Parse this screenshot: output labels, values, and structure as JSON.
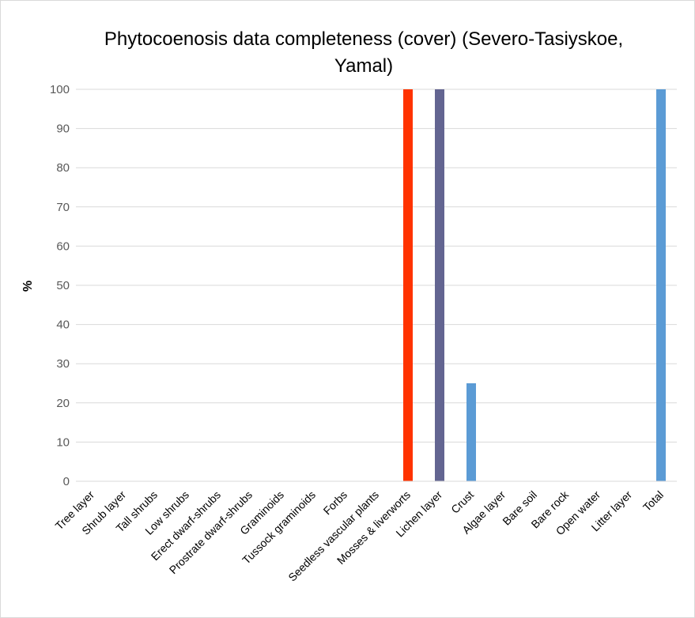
{
  "chart_data": {
    "type": "bar",
    "title": "Phytocoenosis data completeness (cover) (Severo-Tasiyskoe, Yamal)",
    "xlabel": "",
    "ylabel": "%",
    "ylim": [
      0,
      100
    ],
    "yticks": [
      0,
      10,
      20,
      30,
      40,
      50,
      60,
      70,
      80,
      90,
      100
    ],
    "grid": true,
    "categories": [
      "Tree layer",
      "Shrub layer",
      "Tall shrubs",
      "Low shrubs",
      "Erect dwarf-shrubs",
      "Prostrate dwarf-shrubs",
      "Graminoids",
      "Tussock graminoids",
      "Forbs",
      "Seedless vascular plants",
      "Mosses & liverworts",
      "Lichen layer",
      "Crust",
      "Algae layer",
      "Bare soil",
      "Bare rock",
      "Open water",
      "Litter layer",
      "Total"
    ],
    "values": [
      0,
      0,
      0,
      0,
      0,
      0,
      0,
      0,
      0,
      0,
      100,
      100,
      25,
      0,
      0,
      0,
      0,
      0,
      100
    ],
    "colors": [
      "#5b9bd5",
      "#5b9bd5",
      "#5b9bd5",
      "#5b9bd5",
      "#5b9bd5",
      "#5b9bd5",
      "#5b9bd5",
      "#5b9bd5",
      "#5b9bd5",
      "#5b9bd5",
      "#ff3300",
      "#636591",
      "#5b9bd5",
      "#5b9bd5",
      "#5b9bd5",
      "#5b9bd5",
      "#5b9bd5",
      "#5b9bd5",
      "#5b9bd5"
    ]
  }
}
